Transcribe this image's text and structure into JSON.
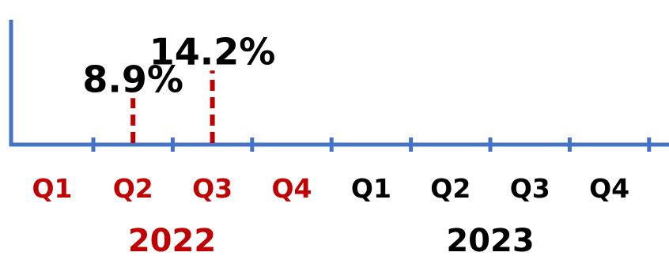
{
  "chart_data": {
    "type": "bar",
    "style": "dashed marker lines on a quarterly timeline",
    "categories": [
      "Q1",
      "Q2",
      "Q3",
      "Q4",
      "Q1",
      "Q2",
      "Q3",
      "Q4"
    ],
    "years": [
      {
        "label": "2022",
        "quarters": [
          0,
          1,
          2,
          3
        ],
        "color": "#c00000"
      },
      {
        "label": "2023",
        "quarters": [
          4,
          5,
          6,
          7
        ],
        "color": "#000000"
      }
    ],
    "values": [
      null,
      8.9,
      14.2,
      null,
      null,
      null,
      null,
      null
    ],
    "data_labels": [
      "",
      "8.9%",
      "14.2%",
      "",
      "",
      "",
      "",
      ""
    ],
    "ylim": [
      0,
      20
    ],
    "title": "",
    "xlabel": "",
    "ylabel": "",
    "grid": false,
    "colors": {
      "axis": "#4472c4",
      "marker": "#c00000",
      "value_label": "#000000",
      "year_2022": "#c00000",
      "year_2023": "#000000"
    }
  }
}
